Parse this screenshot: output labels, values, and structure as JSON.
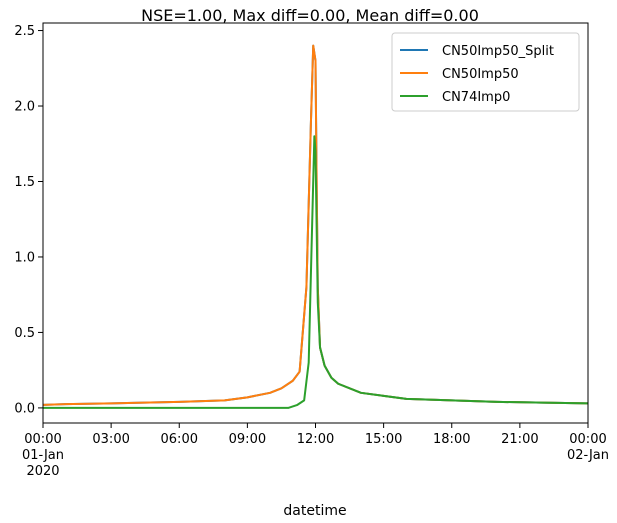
{
  "chart_data": {
    "type": "line",
    "title": "NSE=1.00, Max diff=0.00, Mean diff=0.00",
    "xlabel": "datetime",
    "ylabel": "",
    "x_range_hours": [
      0,
      24
    ],
    "ylim": [
      -0.1,
      2.55
    ],
    "grid": false,
    "legend_position": "top-right",
    "x_ticks": [
      {
        "hour": 0,
        "label": "00:00",
        "sublabel": "01-Jan",
        "sublabel2": "2020"
      },
      {
        "hour": 3,
        "label": "03:00"
      },
      {
        "hour": 6,
        "label": "06:00"
      },
      {
        "hour": 9,
        "label": "09:00"
      },
      {
        "hour": 12,
        "label": "12:00"
      },
      {
        "hour": 15,
        "label": "15:00"
      },
      {
        "hour": 18,
        "label": "18:00"
      },
      {
        "hour": 21,
        "label": "21:00"
      },
      {
        "hour": 24,
        "label": "00:00",
        "sublabel": "02-Jan"
      }
    ],
    "y_ticks": [
      {
        "value": 0.0,
        "label": "0.0"
      },
      {
        "value": 0.5,
        "label": "0.5"
      },
      {
        "value": 1.0,
        "label": "1.0"
      },
      {
        "value": 1.5,
        "label": "1.5"
      },
      {
        "value": 2.0,
        "label": "2.0"
      },
      {
        "value": 2.5,
        "label": "2.5"
      }
    ],
    "series": [
      {
        "name": "CN50Imp50_Split",
        "color": "#1f77b4",
        "x": [
          0,
          1,
          3,
          6,
          8,
          9,
          10,
          10.5,
          11,
          11.3,
          11.6,
          11.8,
          11.9,
          12.0,
          12.05,
          12.1,
          12.2,
          12.4,
          12.7,
          13,
          14,
          15,
          16,
          18,
          20,
          22,
          24
        ],
        "y": [
          0.02,
          0.025,
          0.03,
          0.04,
          0.05,
          0.07,
          0.1,
          0.13,
          0.18,
          0.24,
          0.8,
          1.9,
          2.4,
          2.3,
          1.5,
          0.8,
          0.4,
          0.28,
          0.2,
          0.16,
          0.1,
          0.08,
          0.06,
          0.05,
          0.04,
          0.035,
          0.03
        ]
      },
      {
        "name": "CN50Imp50",
        "color": "#ff7f0e",
        "x": [
          0,
          1,
          3,
          6,
          8,
          9,
          10,
          10.5,
          11,
          11.3,
          11.6,
          11.8,
          11.9,
          12.0,
          12.05,
          12.1,
          12.2,
          12.4,
          12.7,
          13,
          14,
          15,
          16,
          18,
          20,
          22,
          24
        ],
        "y": [
          0.02,
          0.025,
          0.03,
          0.04,
          0.05,
          0.07,
          0.1,
          0.13,
          0.18,
          0.24,
          0.8,
          1.9,
          2.4,
          2.3,
          1.5,
          0.8,
          0.4,
          0.28,
          0.2,
          0.16,
          0.1,
          0.08,
          0.06,
          0.05,
          0.04,
          0.035,
          0.03
        ]
      },
      {
        "name": "CN74Imp0",
        "color": "#2ca02c",
        "x": [
          0,
          3,
          6,
          9,
          10,
          10.8,
          11.2,
          11.5,
          11.7,
          11.85,
          11.95,
          12.0,
          12.1,
          12.2,
          12.4,
          12.7,
          13,
          14,
          15,
          16,
          18,
          20,
          22,
          24
        ],
        "y": [
          0.0,
          0.0,
          0.0,
          0.0,
          0.0,
          0.0,
          0.02,
          0.05,
          0.3,
          1.2,
          1.8,
          1.7,
          0.7,
          0.4,
          0.28,
          0.2,
          0.16,
          0.1,
          0.08,
          0.06,
          0.05,
          0.04,
          0.035,
          0.03
        ]
      }
    ]
  }
}
